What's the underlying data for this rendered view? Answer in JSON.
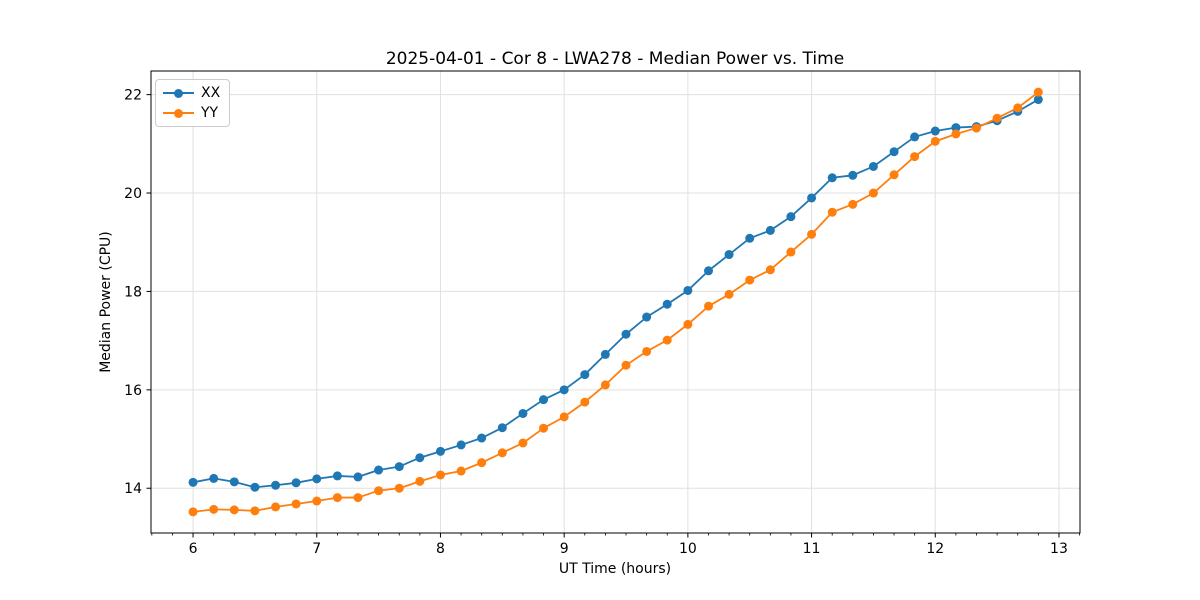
{
  "chart_data": {
    "type": "line",
    "title": "2025-04-01 - Cor 8 - LWA278 - Median Power vs. Time",
    "xlabel": "UT Time (hours)",
    "ylabel": "Median Power (CPU)",
    "x": [
      6.0,
      6.167,
      6.333,
      6.5,
      6.667,
      6.833,
      7.0,
      7.167,
      7.333,
      7.5,
      7.667,
      7.833,
      8.0,
      8.167,
      8.333,
      8.5,
      8.667,
      8.833,
      9.0,
      9.167,
      9.333,
      9.5,
      9.667,
      9.833,
      10.0,
      10.167,
      10.333,
      10.5,
      10.667,
      10.833,
      11.0,
      11.167,
      11.333,
      11.5,
      11.667,
      11.833,
      12.0,
      12.167,
      12.333,
      12.5,
      12.667,
      12.833
    ],
    "series": [
      {
        "name": "XX",
        "color": "#1f77b4",
        "values": [
          14.12,
          14.2,
          14.13,
          14.02,
          14.06,
          14.11,
          14.19,
          14.25,
          14.23,
          14.37,
          14.44,
          14.62,
          14.75,
          14.88,
          15.02,
          15.23,
          15.52,
          15.8,
          16.0,
          16.31,
          16.72,
          17.13,
          17.48,
          17.74,
          18.02,
          18.42,
          18.75,
          19.08,
          19.24,
          19.52,
          19.9,
          20.31,
          20.36,
          20.54,
          20.84,
          21.14,
          21.26,
          21.33,
          21.35,
          21.47,
          21.66,
          21.9
        ]
      },
      {
        "name": "YY",
        "color": "#ff7f0e",
        "values": [
          13.52,
          13.57,
          13.56,
          13.54,
          13.62,
          13.68,
          13.74,
          13.81,
          13.81,
          13.95,
          14.0,
          14.14,
          14.27,
          14.35,
          14.52,
          14.72,
          14.92,
          15.22,
          15.45,
          15.75,
          16.1,
          16.5,
          16.78,
          17.01,
          17.33,
          17.7,
          17.94,
          18.23,
          18.44,
          18.8,
          19.16,
          19.61,
          19.77,
          20.0,
          20.37,
          20.74,
          21.05,
          21.2,
          21.32,
          21.52,
          21.73,
          22.05
        ]
      }
    ],
    "xlim": [
      5.66,
      13.17
    ],
    "ylim": [
      13.09,
      22.48
    ],
    "xticks": [
      6,
      7,
      8,
      9,
      10,
      11,
      12,
      13
    ],
    "yticks": [
      14,
      16,
      18,
      20,
      22
    ],
    "x_minor_step": 0.1666667,
    "grid": true,
    "legend_position": "upper left",
    "marker": "circle",
    "colors": {
      "grid": "#e0e0e0",
      "axis": "#000000",
      "text": "#000000",
      "background": "#ffffff"
    }
  }
}
